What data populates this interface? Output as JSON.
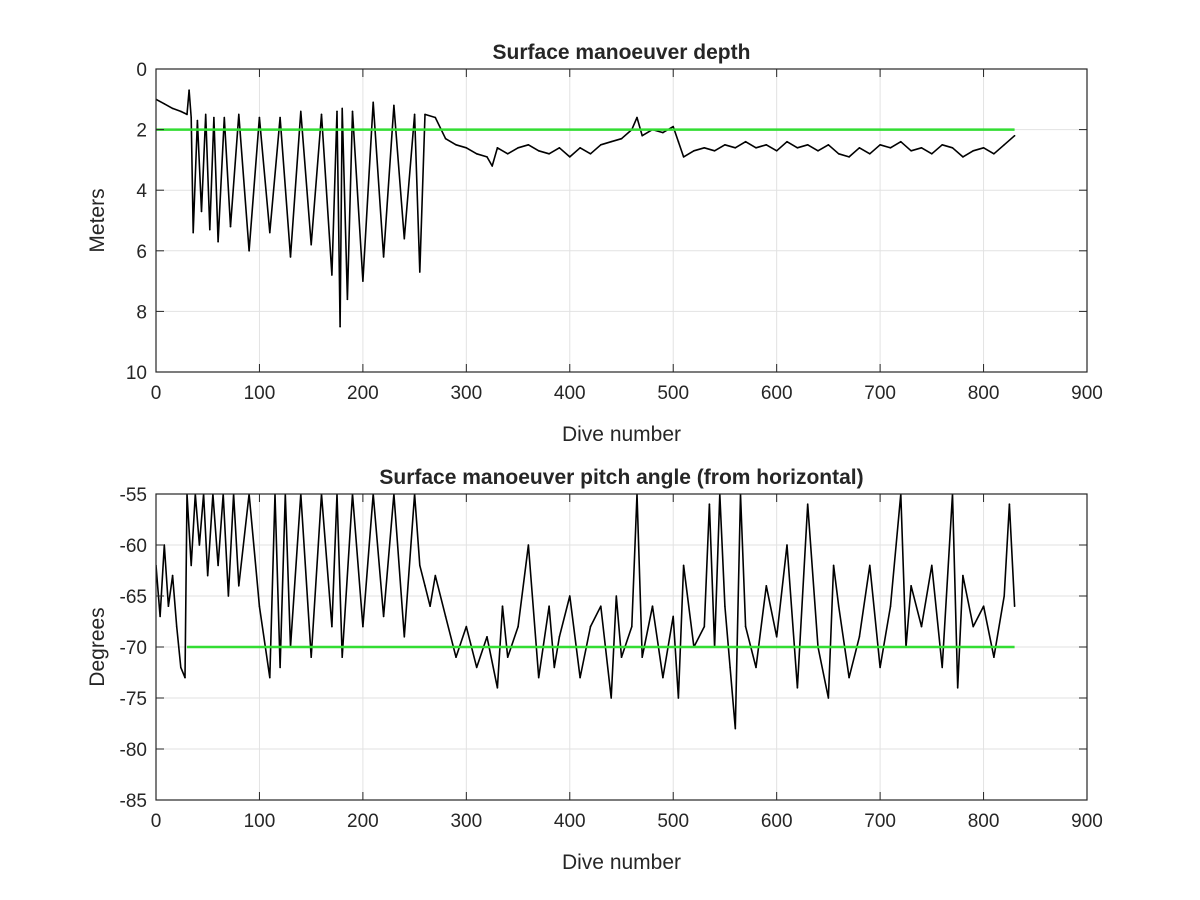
{
  "chart_data": [
    {
      "type": "line",
      "title": "Surface manoeuver depth",
      "xlabel": "Dive number",
      "ylabel": "Meters",
      "xlim": [
        0,
        900
      ],
      "ylim": [
        0,
        10
      ],
      "y_reversed": true,
      "grid": true,
      "xticks": [
        "0",
        "100",
        "200",
        "300",
        "400",
        "500",
        "600",
        "700",
        "800",
        "900"
      ],
      "yticks": [
        "0",
        "2",
        "4",
        "6",
        "8",
        "10"
      ],
      "reference_line": {
        "y": 2,
        "x": [
          0,
          830
        ],
        "color": "#33dd33"
      },
      "series": [
        {
          "color": "#000000",
          "x": [
            0,
            8,
            16,
            24,
            30,
            32,
            34,
            36,
            40,
            44,
            48,
            52,
            56,
            60,
            66,
            72,
            80,
            90,
            100,
            110,
            120,
            130,
            140,
            150,
            160,
            170,
            175,
            178,
            180,
            185,
            190,
            200,
            210,
            220,
            230,
            240,
            250,
            255,
            260,
            270,
            280,
            290,
            300,
            310,
            320,
            325,
            330,
            340,
            350,
            360,
            370,
            380,
            390,
            400,
            410,
            420,
            430,
            440,
            450,
            460,
            465,
            470,
            480,
            490,
            500,
            505,
            510,
            520,
            530,
            540,
            550,
            560,
            570,
            580,
            590,
            600,
            610,
            620,
            630,
            640,
            650,
            660,
            670,
            680,
            690,
            700,
            710,
            720,
            730,
            740,
            750,
            760,
            770,
            780,
            790,
            800,
            810,
            820,
            830
          ],
          "y": [
            1.0,
            1.15,
            1.3,
            1.4,
            1.5,
            0.7,
            1.6,
            5.4,
            1.7,
            4.7,
            1.5,
            5.3,
            1.6,
            5.7,
            1.6,
            5.2,
            1.5,
            6.0,
            1.6,
            5.4,
            1.6,
            6.2,
            1.4,
            5.8,
            1.5,
            6.8,
            1.4,
            8.5,
            1.3,
            7.6,
            1.4,
            7.0,
            1.1,
            6.2,
            1.2,
            5.6,
            1.5,
            6.7,
            1.5,
            1.6,
            2.3,
            2.5,
            2.6,
            2.8,
            2.9,
            3.2,
            2.6,
            2.8,
            2.6,
            2.5,
            2.7,
            2.8,
            2.6,
            2.9,
            2.6,
            2.8,
            2.5,
            2.4,
            2.3,
            2.0,
            1.6,
            2.2,
            2.0,
            2.1,
            1.9,
            2.4,
            2.9,
            2.7,
            2.6,
            2.7,
            2.5,
            2.6,
            2.4,
            2.6,
            2.5,
            2.7,
            2.4,
            2.6,
            2.5,
            2.7,
            2.5,
            2.8,
            2.9,
            2.6,
            2.8,
            2.5,
            2.6,
            2.4,
            2.7,
            2.6,
            2.8,
            2.5,
            2.6,
            2.9,
            2.7,
            2.6,
            2.8,
            2.5,
            2.2
          ]
        }
      ]
    },
    {
      "type": "line",
      "title": "Surface manoeuver pitch angle (from horizontal)",
      "xlabel": "Dive number",
      "ylabel": "Degrees",
      "xlim": [
        0,
        900
      ],
      "ylim": [
        -85,
        -55
      ],
      "grid": true,
      "xticks": [
        "0",
        "100",
        "200",
        "300",
        "400",
        "500",
        "600",
        "700",
        "800",
        "900"
      ],
      "yticks": [
        "-55",
        "-60",
        "-65",
        "-70",
        "-75",
        "-80",
        "-85"
      ],
      "reference_line": {
        "y": -70,
        "x": [
          30,
          830
        ],
        "color": "#33dd33"
      },
      "series": [
        {
          "color": "#000000",
          "x": [
            0,
            4,
            8,
            12,
            16,
            20,
            24,
            28,
            30,
            34,
            38,
            42,
            46,
            50,
            55,
            60,
            65,
            70,
            75,
            80,
            90,
            100,
            110,
            115,
            120,
            125,
            130,
            140,
            150,
            160,
            170,
            175,
            180,
            190,
            200,
            210,
            220,
            230,
            240,
            250,
            255,
            260,
            265,
            270,
            280,
            290,
            300,
            310,
            320,
            330,
            335,
            340,
            350,
            360,
            370,
            380,
            385,
            390,
            400,
            410,
            420,
            430,
            440,
            445,
            450,
            460,
            465,
            470,
            480,
            490,
            500,
            505,
            510,
            520,
            530,
            535,
            540,
            545,
            550,
            555,
            560,
            565,
            570,
            580,
            590,
            600,
            610,
            620,
            630,
            640,
            650,
            655,
            660,
            670,
            680,
            690,
            700,
            710,
            720,
            725,
            730,
            740,
            750,
            760,
            770,
            775,
            780,
            790,
            800,
            810,
            820,
            825,
            830
          ],
          "y": [
            -62,
            -67,
            -60,
            -66,
            -63,
            -68,
            -72,
            -73,
            -55,
            -62,
            -55,
            -60,
            -55,
            -63,
            -55,
            -62,
            -55,
            -65,
            -55,
            -64,
            -55,
            -66,
            -73,
            -55,
            -72,
            -55,
            -70,
            -55,
            -71,
            -55,
            -68,
            -55,
            -71,
            -55,
            -68,
            -55,
            -67,
            -55,
            -69,
            -55,
            -62,
            -64,
            -66,
            -63,
            -67,
            -71,
            -68,
            -72,
            -69,
            -74,
            -66,
            -71,
            -68,
            -60,
            -73,
            -66,
            -72,
            -69,
            -65,
            -73,
            -68,
            -66,
            -75,
            -65,
            -71,
            -68,
            -55,
            -71,
            -66,
            -73,
            -67,
            -75,
            -62,
            -70,
            -68,
            -56,
            -70,
            -55,
            -66,
            -72,
            -78,
            -55,
            -68,
            -72,
            -64,
            -69,
            -60,
            -74,
            -56,
            -70,
            -75,
            -62,
            -66,
            -73,
            -69,
            -62,
            -72,
            -66,
            -55,
            -70,
            -64,
            -68,
            -62,
            -72,
            -55,
            -74,
            -63,
            -68,
            -66,
            -71,
            -65,
            -56,
            -66
          ]
        }
      ]
    }
  ]
}
